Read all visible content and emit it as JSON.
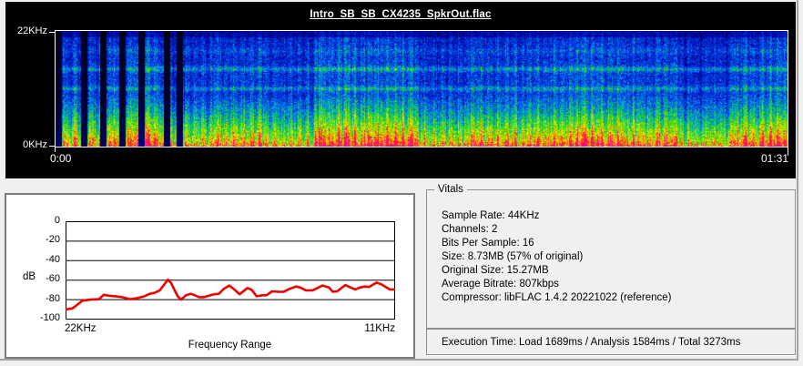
{
  "spectrogram": {
    "title": "Intro_SB_SB_CX4235_SpkrOut.flac",
    "freq_top_label": "22KHz",
    "freq_bottom_label": "0KHz",
    "time_start_label": "0:00",
    "time_end_label": "01:31",
    "bg_color": "#000000",
    "text_color": "#ffffff"
  },
  "chart_data": {
    "type": "line",
    "title": "Frequency Range",
    "ylabel": "dB",
    "x_start_label": "22KHz",
    "x_end_label": "11KHz",
    "y_ticks": [
      0,
      -20,
      -40,
      -60,
      -80,
      -100
    ],
    "ylim": [
      -100,
      0
    ],
    "grid": "horizontal",
    "series": [
      {
        "name": "frequency-response",
        "color": "#ee0000",
        "points": [
          [
            0.0,
            -90
          ],
          [
            0.02,
            -89
          ],
          [
            0.035,
            -85
          ],
          [
            0.05,
            -81
          ],
          [
            0.075,
            -80
          ],
          [
            0.1,
            -79.5
          ],
          [
            0.115,
            -75
          ],
          [
            0.13,
            -76
          ],
          [
            0.15,
            -76.5
          ],
          [
            0.17,
            -77.5
          ],
          [
            0.195,
            -79.5
          ],
          [
            0.215,
            -78.5
          ],
          [
            0.235,
            -77
          ],
          [
            0.255,
            -74
          ],
          [
            0.27,
            -73
          ],
          [
            0.285,
            -70.5
          ],
          [
            0.3,
            -64
          ],
          [
            0.31,
            -59.5
          ],
          [
            0.32,
            -63
          ],
          [
            0.33,
            -70
          ],
          [
            0.34,
            -76.5
          ],
          [
            0.35,
            -80
          ],
          [
            0.365,
            -75.5
          ],
          [
            0.38,
            -74
          ],
          [
            0.392,
            -75.5
          ],
          [
            0.405,
            -77.5
          ],
          [
            0.42,
            -77.5
          ],
          [
            0.435,
            -76
          ],
          [
            0.45,
            -74.5
          ],
          [
            0.465,
            -74
          ],
          [
            0.48,
            -69
          ],
          [
            0.497,
            -65.5
          ],
          [
            0.512,
            -69.5
          ],
          [
            0.528,
            -74.5
          ],
          [
            0.552,
            -68
          ],
          [
            0.565,
            -70
          ],
          [
            0.58,
            -76.5
          ],
          [
            0.598,
            -75.5
          ],
          [
            0.61,
            -75.5
          ],
          [
            0.627,
            -71.5
          ],
          [
            0.645,
            -72
          ],
          [
            0.662,
            -72
          ],
          [
            0.68,
            -69
          ],
          [
            0.7,
            -66.5
          ],
          [
            0.712,
            -67.5
          ],
          [
            0.73,
            -70.5
          ],
          [
            0.75,
            -70.5
          ],
          [
            0.765,
            -68
          ],
          [
            0.78,
            -65.5
          ],
          [
            0.8,
            -67.5
          ],
          [
            0.812,
            -72
          ],
          [
            0.825,
            -71.5
          ],
          [
            0.85,
            -65
          ],
          [
            0.865,
            -67.5
          ],
          [
            0.88,
            -69.5
          ],
          [
            0.895,
            -67.5
          ],
          [
            0.91,
            -66.5
          ],
          [
            0.922,
            -67
          ],
          [
            0.945,
            -62.5
          ],
          [
            0.96,
            -64.5
          ],
          [
            0.985,
            -69.5
          ],
          [
            1.0,
            -69.5
          ]
        ]
      }
    ]
  },
  "vitals": {
    "legend": "Vitals",
    "lines": [
      "Sample Rate: 44KHz",
      "Channels: 2",
      "Bits Per Sample: 16",
      "Size: 8.73MB (57% of original)",
      "Original Size: 15.27MB",
      "Average Bitrate: 807kbps",
      "Compressor: libFLAC 1.4.2 20221022 (reference)"
    ]
  },
  "execution": {
    "text": "Execution Time: Load 1689ms / Analysis 1584ms / Total 3273ms"
  }
}
